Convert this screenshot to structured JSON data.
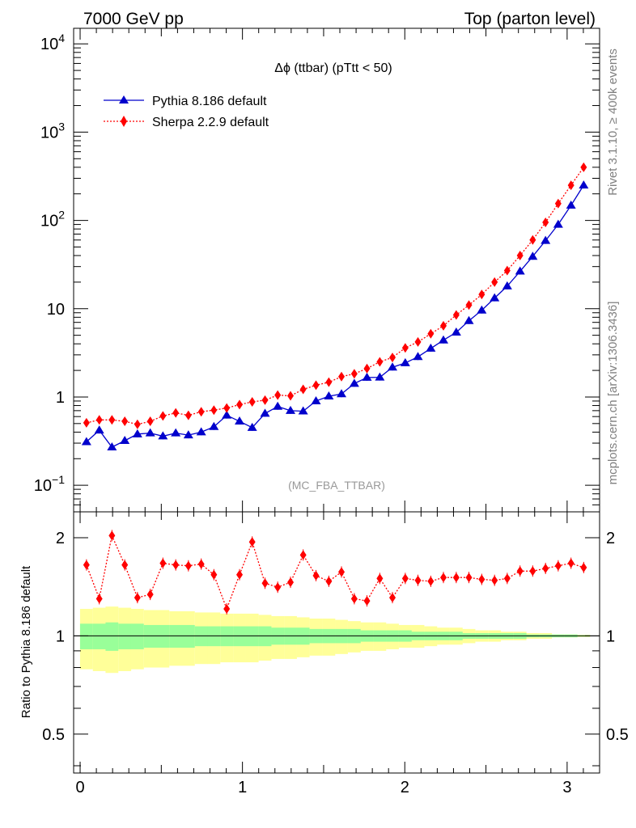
{
  "header": {
    "left": "7000 GeV pp",
    "right": "Top (parton level)"
  },
  "side_labels": {
    "rivet": "Rivet 3.1.10, ≥ 400k events",
    "mcplots": "mcplots.cern.ch [arXiv:1306.3436]"
  },
  "chart_data": [
    {
      "type": "line",
      "panel": "main",
      "title": "Δϕ (ttbar) (pTtt < 50)",
      "watermark": "(MC_FBA_TTBAR)",
      "xlabel": "",
      "ylabel": "",
      "y_scale": "log",
      "xlim": [
        -0.04,
        3.2
      ],
      "ylim": [
        0.05,
        15000
      ],
      "y_ticks": [
        {
          "value": 0.1,
          "label": "10",
          "sup": "−1"
        },
        {
          "value": 1,
          "label": "1",
          "sup": ""
        },
        {
          "value": 10,
          "label": "10",
          "sup": ""
        },
        {
          "value": 100,
          "label": "10",
          "sup": "2"
        },
        {
          "value": 1000,
          "label": "10",
          "sup": "3"
        },
        {
          "value": 10000,
          "label": "10",
          "sup": "4"
        }
      ],
      "legend_position": "top-left",
      "x": [
        0.039,
        0.118,
        0.196,
        0.275,
        0.353,
        0.432,
        0.51,
        0.589,
        0.667,
        0.746,
        0.824,
        0.903,
        0.982,
        1.06,
        1.139,
        1.217,
        1.296,
        1.374,
        1.453,
        1.532,
        1.61,
        1.689,
        1.767,
        1.846,
        1.924,
        2.003,
        2.081,
        2.16,
        2.238,
        2.317,
        2.395,
        2.474,
        2.553,
        2.631,
        2.71,
        2.788,
        2.867,
        2.945,
        3.024,
        3.102
      ],
      "series": [
        {
          "name": "Pythia 8.186 default",
          "color": "#0000cc",
          "marker": "triangle",
          "line": "solid",
          "values": [
            0.31,
            0.42,
            0.27,
            0.32,
            0.38,
            0.39,
            0.36,
            0.39,
            0.37,
            0.4,
            0.46,
            0.62,
            0.53,
            0.45,
            0.65,
            0.78,
            0.7,
            0.69,
            0.9,
            1.02,
            1.08,
            1.42,
            1.66,
            1.67,
            2.17,
            2.43,
            2.85,
            3.55,
            4.4,
            5.4,
            7.3,
            9.6,
            13.2,
            18.0,
            26.5,
            39.0,
            59.0,
            90.0,
            148,
            250
          ]
        },
        {
          "name": "Sherpa 2.2.9 default",
          "color": "#ff0000",
          "marker": "diamond",
          "line": "dotted",
          "values": [
            0.51,
            0.55,
            0.55,
            0.53,
            0.49,
            0.53,
            0.61,
            0.66,
            0.62,
            0.68,
            0.71,
            0.75,
            0.82,
            0.88,
            0.92,
            1.05,
            1.03,
            1.22,
            1.36,
            1.47,
            1.7,
            1.83,
            2.1,
            2.5,
            2.8,
            3.6,
            4.2,
            5.2,
            6.4,
            8.5,
            11.0,
            14.5,
            20.0,
            27.0,
            40.0,
            60.0,
            95.0,
            155,
            250,
            400
          ]
        }
      ]
    },
    {
      "type": "line",
      "panel": "ratio",
      "ylabel": "Ratio to Pythia 8.186 default",
      "xlabel": "",
      "xlim": [
        -0.04,
        3.2
      ],
      "ylim": [
        0.38,
        2.4
      ],
      "y_scale": "log",
      "y_ticks": [
        {
          "value": 0.5,
          "label": "0.5"
        },
        {
          "value": 1,
          "label": "1"
        },
        {
          "value": 2,
          "label": "2"
        }
      ],
      "x_ticks": [
        {
          "value": 0,
          "label": "0"
        },
        {
          "value": 1,
          "label": "1"
        },
        {
          "value": 2,
          "label": "2"
        },
        {
          "value": 3,
          "label": "3"
        }
      ],
      "reference_line": 1,
      "band_colors": {
        "inner": "#99ff99",
        "outer": "#ffff99"
      },
      "band_inner": [
        0.09,
        0.09,
        0.1,
        0.09,
        0.09,
        0.08,
        0.08,
        0.08,
        0.08,
        0.07,
        0.07,
        0.07,
        0.07,
        0.07,
        0.07,
        0.06,
        0.06,
        0.06,
        0.05,
        0.05,
        0.05,
        0.05,
        0.04,
        0.04,
        0.04,
        0.04,
        0.03,
        0.03,
        0.03,
        0.03,
        0.02,
        0.02,
        0.02,
        0.02,
        0.02,
        0.01,
        0.01,
        0.01,
        0.01,
        0.005
      ],
      "band_outer": [
        0.21,
        0.22,
        0.23,
        0.22,
        0.21,
        0.2,
        0.2,
        0.19,
        0.19,
        0.18,
        0.18,
        0.17,
        0.17,
        0.17,
        0.16,
        0.15,
        0.15,
        0.14,
        0.13,
        0.13,
        0.12,
        0.11,
        0.1,
        0.1,
        0.09,
        0.08,
        0.08,
        0.07,
        0.06,
        0.06,
        0.05,
        0.04,
        0.04,
        0.03,
        0.03,
        0.02,
        0.02,
        0.01,
        0.01,
        0.008
      ],
      "series": [
        {
          "name": "Sherpa 2.2.9 default",
          "color": "#ff0000",
          "marker": "diamond",
          "line": "dotted",
          "values": [
            1.65,
            1.3,
            2.03,
            1.65,
            1.31,
            1.34,
            1.67,
            1.65,
            1.64,
            1.66,
            1.54,
            1.21,
            1.54,
            1.94,
            1.45,
            1.41,
            1.46,
            1.77,
            1.53,
            1.47,
            1.57,
            1.3,
            1.28,
            1.5,
            1.31,
            1.5,
            1.48,
            1.47,
            1.51,
            1.51,
            1.51,
            1.49,
            1.48,
            1.5,
            1.58,
            1.58,
            1.61,
            1.64,
            1.67,
            1.62
          ]
        }
      ]
    }
  ]
}
